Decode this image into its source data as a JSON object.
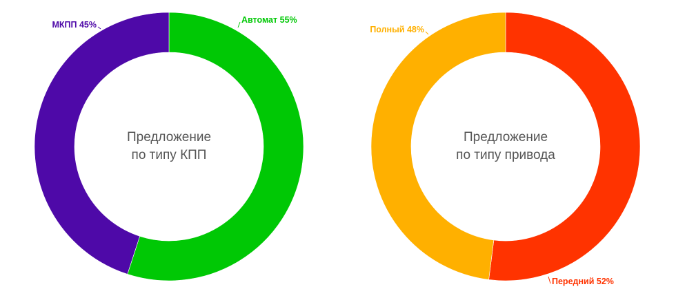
{
  "chart_data": [
    {
      "type": "donut",
      "title": [
        "Предложение",
        "по типу КПП"
      ],
      "categories": [
        "Автомат",
        "МКПП"
      ],
      "values": [
        55,
        45
      ],
      "value_labels": [
        "55%",
        "45%"
      ],
      "colors": [
        "#00c805",
        "#4e09a8"
      ]
    },
    {
      "type": "donut",
      "title": [
        "Предложение",
        "по типу привода"
      ],
      "categories": [
        "Передний",
        "Полный"
      ],
      "values": [
        52,
        48
      ],
      "value_labels": [
        "52%",
        "48%"
      ],
      "colors": [
        "#ff3300",
        "#ffb000"
      ]
    }
  ]
}
